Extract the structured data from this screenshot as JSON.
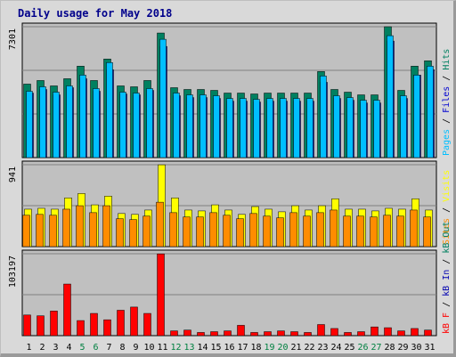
{
  "title": "Daily usage for May 2018",
  "colors": {
    "background": "#d9d9d9",
    "plot_bg": "#c0c0c0",
    "pages": "#00bfff",
    "files": "#0000d0",
    "hits": "#008060",
    "visits": "#ffff00",
    "sites": "#ff8c00",
    "kb_in": "#0000b0",
    "kb_out": "#008060",
    "kb_f": "#ff0000",
    "weekend_day": "#008040"
  },
  "chart_data": [
    {
      "type": "bar",
      "name": "hits-files-pages",
      "max_label": "7301",
      "ylim": [
        0,
        7301
      ],
      "ylabel_parts": [
        "Pages",
        "Files",
        "Hits"
      ],
      "x": [
        1,
        2,
        3,
        4,
        5,
        6,
        7,
        8,
        9,
        10,
        11,
        12,
        13,
        14,
        15,
        16,
        17,
        18,
        19,
        20,
        21,
        22,
        23,
        24,
        25,
        26,
        27,
        28,
        29,
        30,
        31
      ],
      "series": [
        {
          "name": "Hits",
          "values": [
            4100,
            4300,
            4000,
            4400,
            5100,
            4300,
            5500,
            4000,
            3950,
            4300,
            6950,
            3900,
            3800,
            3800,
            3750,
            3600,
            3600,
            3550,
            3600,
            3600,
            3600,
            3600,
            4800,
            3800,
            3650,
            3500,
            3500,
            7300,
            3750,
            5100,
            5400
          ]
        },
        {
          "name": "Files",
          "values": [
            3600,
            3800,
            3500,
            3900,
            4400,
            3700,
            4900,
            3550,
            3500,
            3750,
            6200,
            3450,
            3350,
            3350,
            3300,
            3150,
            3150,
            3100,
            3150,
            3150,
            3150,
            3150,
            4200,
            3300,
            3200,
            3050,
            3050,
            6500,
            3300,
            4600,
            4900
          ]
        },
        {
          "name": "Pages",
          "values": [
            3700,
            3950,
            3650,
            4000,
            4600,
            3850,
            5300,
            3650,
            3600,
            3850,
            6600,
            3600,
            3500,
            3500,
            3450,
            3300,
            3300,
            3250,
            3300,
            3300,
            3300,
            3300,
            4550,
            3450,
            3350,
            3200,
            3200,
            6800,
            3450,
            4600,
            5100
          ]
        }
      ]
    },
    {
      "type": "bar",
      "name": "visits-sites",
      "max_label": "941",
      "ylim": [
        0,
        941
      ],
      "ylabel_parts": [
        "Sites",
        "Visits"
      ],
      "x": [
        1,
        2,
        3,
        4,
        5,
        6,
        7,
        8,
        9,
        10,
        11,
        12,
        13,
        14,
        15,
        16,
        17,
        18,
        19,
        20,
        21,
        22,
        23,
        24,
        25,
        26,
        27,
        28,
        29,
        30,
        31
      ],
      "series": [
        {
          "name": "Visits",
          "values": [
            430,
            440,
            430,
            560,
            610,
            480,
            580,
            380,
            370,
            420,
            940,
            560,
            420,
            410,
            480,
            420,
            370,
            460,
            430,
            400,
            470,
            420,
            470,
            550,
            430,
            430,
            410,
            440,
            430,
            550,
            420
          ]
        },
        {
          "name": "Sites",
          "values": [
            360,
            370,
            360,
            430,
            470,
            390,
            470,
            320,
            310,
            350,
            510,
            390,
            340,
            340,
            390,
            360,
            320,
            380,
            350,
            330,
            390,
            350,
            390,
            420,
            350,
            350,
            340,
            360,
            350,
            420,
            340
          ]
        }
      ]
    },
    {
      "type": "bar",
      "name": "kbytes",
      "max_label": "103197",
      "ylim": [
        0,
        103197
      ],
      "ylabel_parts": [
        "kB F",
        "kB In",
        "kB Out"
      ],
      "x": [
        1,
        2,
        3,
        4,
        5,
        6,
        7,
        8,
        9,
        10,
        11,
        12,
        13,
        14,
        15,
        16,
        17,
        18,
        19,
        20,
        21,
        22,
        23,
        24,
        25,
        26,
        27,
        28,
        29,
        30,
        31
      ],
      "series": [
        {
          "name": "kB F",
          "values": [
            26000,
            25000,
            31000,
            65000,
            19000,
            28000,
            20000,
            32000,
            36000,
            28000,
            103000,
            6000,
            7000,
            4000,
            5000,
            6000,
            13000,
            4000,
            5000,
            6000,
            5000,
            4000,
            14000,
            9000,
            4000,
            5000,
            11000,
            10000,
            6000,
            9000,
            7000
          ]
        }
      ]
    }
  ],
  "x_labels": [
    "1",
    "2",
    "3",
    "4",
    "5",
    "6",
    "7",
    "8",
    "9",
    "10",
    "11",
    "12",
    "13",
    "14",
    "15",
    "16",
    "17",
    "18",
    "19",
    "20",
    "21",
    "22",
    "23",
    "24",
    "25",
    "26",
    "27",
    "28",
    "29",
    "30",
    "31"
  ],
  "weekend_days": [
    5,
    6,
    12,
    13,
    19,
    20,
    26,
    27
  ]
}
